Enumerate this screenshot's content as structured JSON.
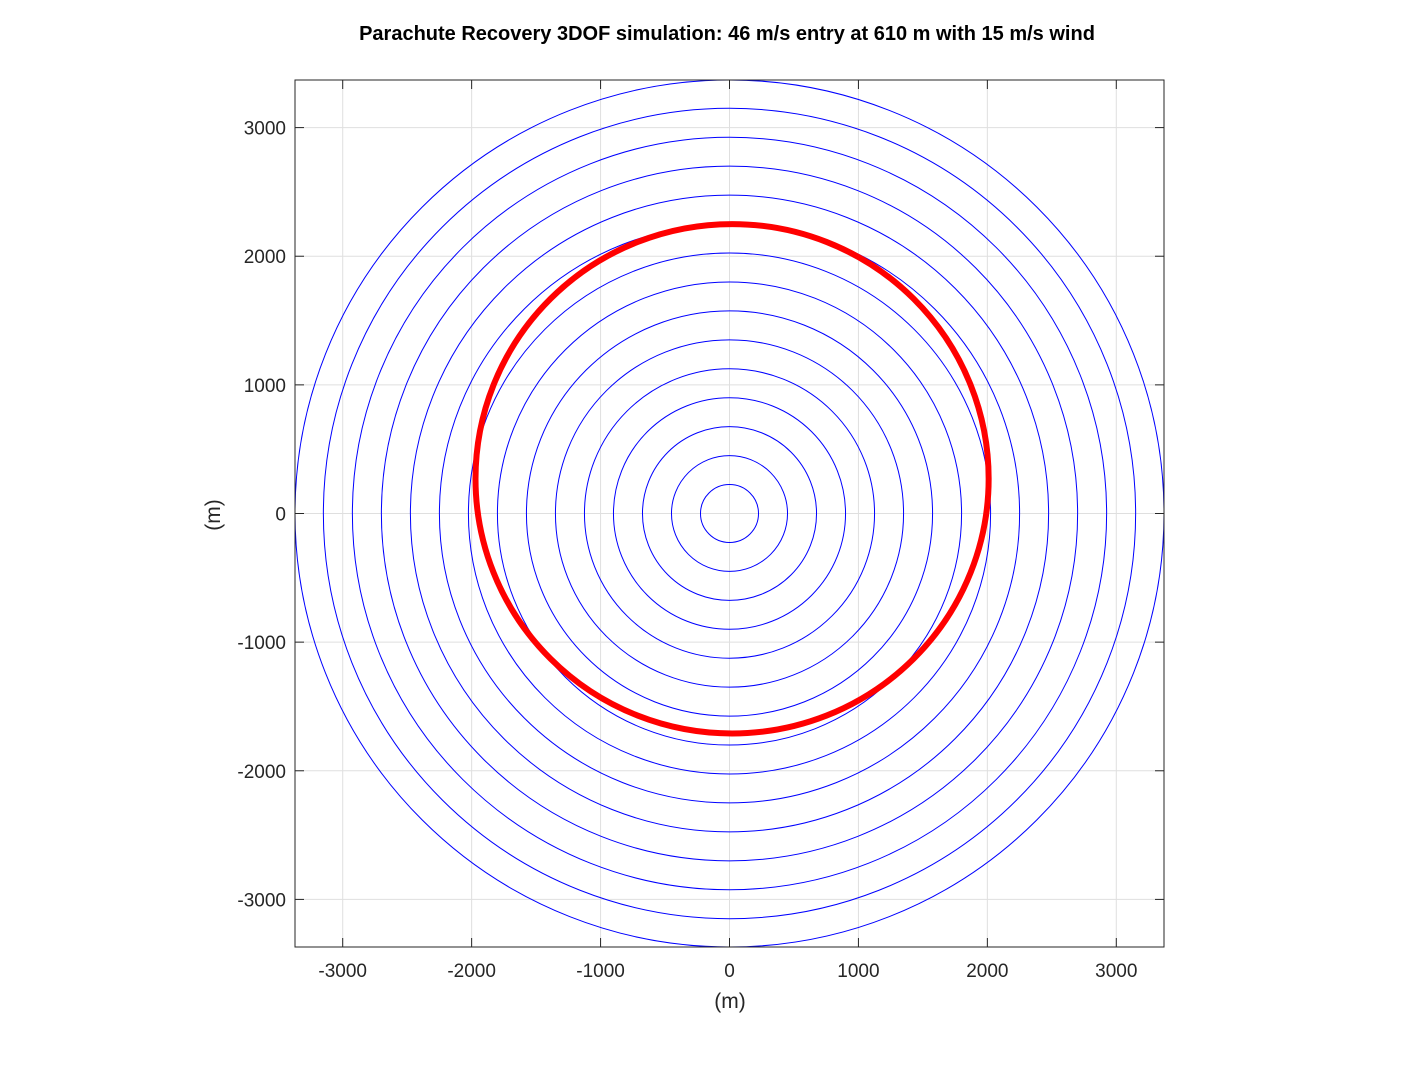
{
  "chart_data": {
    "type": "line",
    "title": "Parachute Recovery 3DOF simulation: 46 m/s entry at 610 m with 15 m/s wind",
    "xlabel": "(m)",
    "ylabel": "(m)",
    "xlim": [
      -3370,
      3370
    ],
    "ylim": [
      -3370,
      3370
    ],
    "xticks": [
      -3000,
      -2000,
      -1000,
      0,
      1000,
      2000,
      3000
    ],
    "yticks": [
      -3000,
      -2000,
      -1000,
      0,
      1000,
      2000,
      3000
    ],
    "xtick_labels": [
      "-3000",
      "-2000",
      "-1000",
      "0",
      "1000",
      "2000",
      "3000"
    ],
    "ytick_labels": [
      "-3000",
      "-2000",
      "-1000",
      "0",
      "1000",
      "2000",
      "3000"
    ],
    "grid": true,
    "contours": {
      "center": [
        0,
        0
      ],
      "radii": [
        225,
        450,
        675,
        900,
        1125,
        1350,
        1575,
        1800,
        2025,
        2250,
        2475,
        2700,
        2925,
        3150,
        3370
      ],
      "color": "#0000ff"
    },
    "footprint": {
      "center": [
        20,
        270
      ],
      "x_semi_axis": 1990,
      "y_semi_axis": 1980,
      "top_y": 2250,
      "bottom_y": -1710,
      "color": "#ff0000"
    },
    "colors": {
      "contour": "#0000ff",
      "footprint": "#ff0000",
      "grid": "#dfdfdf",
      "axes": "#262626"
    }
  }
}
